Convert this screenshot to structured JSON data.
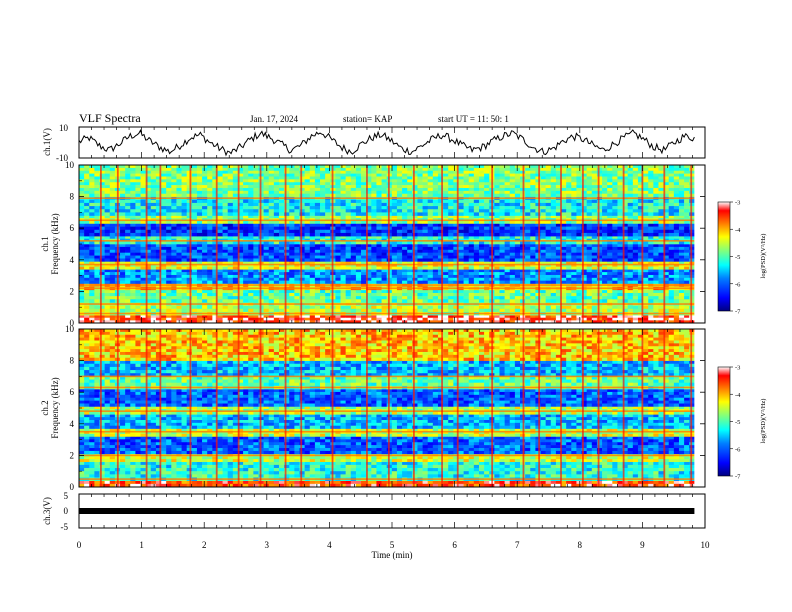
{
  "header": {
    "title": "VLF Spectra",
    "date": "Jan. 17, 2024",
    "station": "station= KAP",
    "start": "start  UT  =    11: 50: 1"
  },
  "chart_data": [
    {
      "type": "line",
      "name": "ch1-waveform",
      "ylabel": "ch.1(V)",
      "ylim": [
        -10,
        10
      ],
      "yticks": [
        "10",
        "-10"
      ],
      "xlim": [
        0,
        9.83
      ],
      "description_values": "noisy oscillating trace between about -8 and 7 V",
      "y": [
        0.5,
        3,
        -2,
        -5,
        -1,
        4,
        6,
        1,
        -3,
        -6,
        -2,
        3,
        5,
        0,
        -4,
        -7,
        -3,
        2,
        6,
        3,
        -1,
        -5,
        -2,
        4,
        7,
        2,
        -3,
        -6,
        -1,
        3,
        5,
        1,
        -4,
        -6,
        -2,
        2,
        5,
        2,
        -2,
        -5,
        -3,
        1,
        4,
        6,
        2,
        -3,
        -6,
        -4,
        1,
        4,
        2,
        -2,
        -5,
        -1,
        3,
        6,
        2,
        -3,
        -5,
        0,
        4,
        3
      ]
    },
    {
      "type": "heatmap",
      "name": "ch1-spectrogram",
      "ylabel": "ch.1\nFrequency (kHz)",
      "ylim": [
        0,
        10
      ],
      "yticks": [
        "0",
        "2",
        "4",
        "6",
        "8",
        "10"
      ],
      "xlim": [
        0,
        10
      ],
      "data_time_end_min": 9.83,
      "bands_khz": [
        {
          "f0": 0.0,
          "f1": 0.5,
          "level": -3.3
        },
        {
          "f0": 0.5,
          "f1": 1.3,
          "level": -4.6
        },
        {
          "f0": 1.3,
          "f1": 2.1,
          "level": -4.9
        },
        {
          "f0": 2.1,
          "f1": 2.5,
          "level": -4.1
        },
        {
          "f0": 2.5,
          "f1": 3.4,
          "level": -5.8
        },
        {
          "f0": 3.4,
          "f1": 3.9,
          "level": -4.4
        },
        {
          "f0": 3.9,
          "f1": 5.0,
          "level": -6.1
        },
        {
          "f0": 5.0,
          "f1": 5.5,
          "level": -5.2
        },
        {
          "f0": 5.5,
          "f1": 6.3,
          "level": -6.2
        },
        {
          "f0": 6.3,
          "f1": 6.8,
          "level": -4.7
        },
        {
          "f0": 6.8,
          "f1": 8.0,
          "level": -5.3
        },
        {
          "f0": 8.0,
          "f1": 10.0,
          "level": -4.8
        }
      ],
      "line_khz": [
        0.6,
        1.2,
        2.2,
        2.4,
        3.7,
        5.2,
        6.5,
        7.9
      ],
      "spherics_min": [
        0.35,
        0.62,
        1.08,
        1.3,
        1.78,
        2.2,
        2.55,
        2.9,
        3.3,
        3.55,
        4.05,
        4.6,
        4.95,
        5.35,
        5.8,
        6.05,
        6.6,
        7.1,
        7.35,
        7.7,
        8.05,
        8.3,
        8.7,
        9.0,
        9.35,
        9.78
      ]
    },
    {
      "type": "heatmap",
      "name": "ch2-spectrogram",
      "ylabel": "ch.2\nFrequency (kHz)",
      "ylim": [
        0,
        10
      ],
      "yticks": [
        "0",
        "2",
        "4",
        "6",
        "8",
        "10"
      ],
      "xlim": [
        0,
        10
      ],
      "data_time_end_min": 9.83,
      "bands_khz": [
        {
          "f0": 0.0,
          "f1": 0.4,
          "level": -3.5
        },
        {
          "f0": 0.4,
          "f1": 1.6,
          "level": -5.2
        },
        {
          "f0": 1.6,
          "f1": 2.1,
          "level": -4.5
        },
        {
          "f0": 2.1,
          "f1": 3.2,
          "level": -6.0
        },
        {
          "f0": 3.2,
          "f1": 3.7,
          "level": -4.5
        },
        {
          "f0": 3.7,
          "f1": 4.6,
          "level": -5.6
        },
        {
          "f0": 4.6,
          "f1": 5.1,
          "level": -4.6
        },
        {
          "f0": 5.1,
          "f1": 6.2,
          "level": -6.0
        },
        {
          "f0": 6.2,
          "f1": 7.0,
          "level": -4.9
        },
        {
          "f0": 7.0,
          "f1": 8.0,
          "level": -5.6
        },
        {
          "f0": 8.0,
          "f1": 10.0,
          "level": -4.1
        }
      ],
      "line_khz": [
        0.5,
        2.0,
        3.5,
        4.8,
        6.3,
        7.0
      ],
      "spherics_min": [
        0.35,
        0.62,
        1.08,
        1.3,
        1.78,
        2.2,
        2.55,
        2.9,
        3.3,
        3.55,
        4.05,
        4.6,
        4.95,
        5.35,
        5.8,
        6.05,
        6.6,
        7.1,
        7.35,
        7.7,
        8.05,
        8.3,
        8.7,
        9.0,
        9.35,
        9.78
      ]
    },
    {
      "type": "line",
      "name": "ch3-waveform",
      "ylabel": "ch.3(V)",
      "ylim": [
        -5,
        5
      ],
      "yticks": [
        "5",
        "0",
        "-5"
      ],
      "xlim": [
        0,
        9.83
      ],
      "y": [
        0,
        0
      ]
    }
  ],
  "xaxis": {
    "label": "Time  (min)",
    "ticks": [
      "0",
      "1",
      "2",
      "3",
      "4",
      "5",
      "6",
      "7",
      "8",
      "9",
      "10"
    ]
  },
  "colorbars": [
    {
      "label": "log(PSD)(V²/Hz)",
      "ticks": [
        "-3",
        "-4",
        "-5",
        "-6",
        "-7"
      ],
      "range": [
        -7,
        -3
      ],
      "colors": [
        "#00007f",
        "#0000ff",
        "#007fff",
        "#00ffff",
        "#7fff7f",
        "#ffff00",
        "#ff7f00",
        "#ff0000",
        "#ffffff"
      ]
    },
    {
      "label": "log(PSD)(V²/Hz)",
      "ticks": [
        "-3",
        "-4",
        "-5",
        "-6",
        "-7"
      ],
      "range": [
        -7,
        -3
      ],
      "colors": [
        "#00007f",
        "#0000ff",
        "#007fff",
        "#00ffff",
        "#7fff7f",
        "#ffff00",
        "#ff7f00",
        "#ff0000",
        "#ffffff"
      ]
    }
  ]
}
